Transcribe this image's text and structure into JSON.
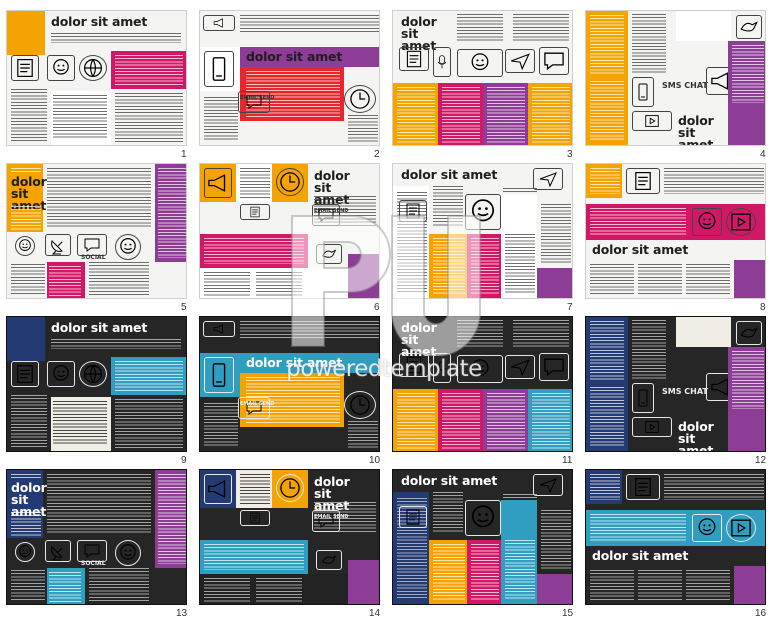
{
  "title_text": "dolor sit amet",
  "watermark_brand": "poweredtemplate",
  "colors": {
    "orange": "#f5a300",
    "magenta": "#d21766",
    "purple": "#8e3d97",
    "blue": "#2f9ec0",
    "red": "#e8262e",
    "navy": "#243a73",
    "cream": "#f0ede4"
  },
  "icon_words": [
    "EMAIL SEND",
    "SMS CHAT",
    "SOCIAL"
  ],
  "slides": [
    {
      "number": "1"
    },
    {
      "number": "2"
    },
    {
      "number": "3"
    },
    {
      "number": "4"
    },
    {
      "number": "5"
    },
    {
      "number": "6"
    },
    {
      "number": "7"
    },
    {
      "number": "8"
    },
    {
      "number": "9"
    },
    {
      "number": "10"
    },
    {
      "number": "11"
    },
    {
      "number": "12"
    },
    {
      "number": "13"
    },
    {
      "number": "14"
    },
    {
      "number": "15"
    },
    {
      "number": "16"
    }
  ]
}
